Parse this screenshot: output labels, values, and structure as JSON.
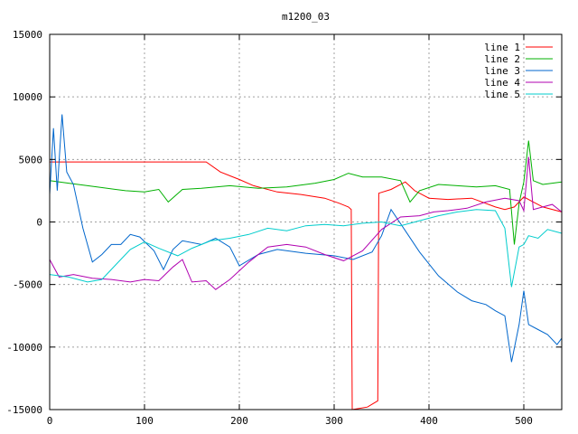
{
  "chart_data": {
    "type": "line",
    "title": "m1200_03",
    "xlabel": "",
    "ylabel": "",
    "xlim": [
      0,
      540
    ],
    "ylim": [
      -15000,
      15000
    ],
    "xticks": [
      0,
      100,
      200,
      300,
      400,
      500
    ],
    "yticks": [
      -15000,
      -10000,
      -5000,
      0,
      5000,
      10000,
      15000
    ],
    "grid": true,
    "legend_position": "top-right",
    "series": [
      {
        "name": "line 1",
        "color": "#ff0000",
        "points": [
          [
            0,
            4800
          ],
          [
            165,
            4800
          ],
          [
            180,
            4000
          ],
          [
            200,
            3400
          ],
          [
            215,
            2900
          ],
          [
            240,
            2400
          ],
          [
            265,
            2200
          ],
          [
            290,
            1900
          ],
          [
            305,
            1500
          ],
          [
            315,
            1200
          ],
          [
            318,
            1000
          ],
          [
            319,
            -15000
          ],
          [
            335,
            -14800
          ],
          [
            346,
            -14300
          ],
          [
            347,
            2300
          ],
          [
            360,
            2600
          ],
          [
            375,
            3200
          ],
          [
            385,
            2500
          ],
          [
            400,
            1900
          ],
          [
            420,
            1800
          ],
          [
            445,
            1900
          ],
          [
            470,
            1200
          ],
          [
            480,
            1000
          ],
          [
            490,
            1200
          ],
          [
            500,
            2000
          ],
          [
            510,
            1600
          ],
          [
            520,
            1200
          ],
          [
            540,
            800
          ]
        ]
      },
      {
        "name": "line 2",
        "color": "#00b000",
        "points": [
          [
            0,
            3300
          ],
          [
            20,
            3100
          ],
          [
            50,
            2800
          ],
          [
            80,
            2500
          ],
          [
            100,
            2400
          ],
          [
            115,
            2600
          ],
          [
            125,
            1600
          ],
          [
            140,
            2600
          ],
          [
            160,
            2700
          ],
          [
            190,
            2900
          ],
          [
            220,
            2700
          ],
          [
            250,
            2800
          ],
          [
            280,
            3100
          ],
          [
            300,
            3400
          ],
          [
            315,
            3900
          ],
          [
            330,
            3600
          ],
          [
            350,
            3600
          ],
          [
            370,
            3300
          ],
          [
            380,
            1600
          ],
          [
            390,
            2500
          ],
          [
            410,
            3000
          ],
          [
            430,
            2900
          ],
          [
            450,
            2800
          ],
          [
            470,
            2900
          ],
          [
            485,
            2600
          ],
          [
            490,
            -1800
          ],
          [
            495,
            1500
          ],
          [
            500,
            3200
          ],
          [
            505,
            6500
          ],
          [
            510,
            3300
          ],
          [
            520,
            3000
          ],
          [
            540,
            3200
          ]
        ]
      },
      {
        "name": "line 3",
        "color": "#0066cc",
        "points": [
          [
            0,
            2200
          ],
          [
            4,
            7500
          ],
          [
            8,
            2500
          ],
          [
            13,
            8600
          ],
          [
            18,
            4000
          ],
          [
            25,
            3000
          ],
          [
            35,
            -500
          ],
          [
            45,
            -3200
          ],
          [
            55,
            -2600
          ],
          [
            65,
            -1800
          ],
          [
            75,
            -1800
          ],
          [
            85,
            -1000
          ],
          [
            95,
            -1200
          ],
          [
            110,
            -2300
          ],
          [
            120,
            -3800
          ],
          [
            130,
            -2200
          ],
          [
            140,
            -1500
          ],
          [
            160,
            -1800
          ],
          [
            175,
            -1300
          ],
          [
            190,
            -2000
          ],
          [
            200,
            -3500
          ],
          [
            220,
            -2600
          ],
          [
            240,
            -2200
          ],
          [
            270,
            -2500
          ],
          [
            300,
            -2700
          ],
          [
            320,
            -3000
          ],
          [
            340,
            -2400
          ],
          [
            350,
            -1100
          ],
          [
            360,
            1000
          ],
          [
            375,
            -700
          ],
          [
            390,
            -2400
          ],
          [
            410,
            -4300
          ],
          [
            430,
            -5600
          ],
          [
            445,
            -6300
          ],
          [
            460,
            -6600
          ],
          [
            470,
            -7100
          ],
          [
            480,
            -7500
          ],
          [
            487,
            -11200
          ],
          [
            495,
            -8200
          ],
          [
            500,
            -5500
          ],
          [
            505,
            -8200
          ],
          [
            515,
            -8600
          ],
          [
            525,
            -9000
          ],
          [
            535,
            -9800
          ],
          [
            540,
            -9300
          ]
        ]
      },
      {
        "name": "line 4",
        "color": "#b000b0",
        "points": [
          [
            0,
            -3000
          ],
          [
            10,
            -4400
          ],
          [
            25,
            -4200
          ],
          [
            45,
            -4500
          ],
          [
            65,
            -4600
          ],
          [
            85,
            -4800
          ],
          [
            100,
            -4600
          ],
          [
            115,
            -4700
          ],
          [
            130,
            -3600
          ],
          [
            140,
            -3000
          ],
          [
            150,
            -4800
          ],
          [
            165,
            -4700
          ],
          [
            175,
            -5400
          ],
          [
            190,
            -4600
          ],
          [
            210,
            -3200
          ],
          [
            230,
            -2000
          ],
          [
            250,
            -1800
          ],
          [
            270,
            -2000
          ],
          [
            290,
            -2600
          ],
          [
            310,
            -3100
          ],
          [
            330,
            -2300
          ],
          [
            350,
            -600
          ],
          [
            370,
            400
          ],
          [
            390,
            500
          ],
          [
            405,
            800
          ],
          [
            420,
            900
          ],
          [
            440,
            1100
          ],
          [
            460,
            1600
          ],
          [
            480,
            1900
          ],
          [
            495,
            1700
          ],
          [
            500,
            900
          ],
          [
            505,
            5200
          ],
          [
            510,
            1000
          ],
          [
            520,
            1200
          ],
          [
            530,
            1400
          ],
          [
            540,
            800
          ]
        ]
      },
      {
        "name": "line 5",
        "color": "#00cccc",
        "points": [
          [
            0,
            -4200
          ],
          [
            20,
            -4400
          ],
          [
            40,
            -4800
          ],
          [
            55,
            -4600
          ],
          [
            70,
            -3400
          ],
          [
            85,
            -2200
          ],
          [
            100,
            -1600
          ],
          [
            115,
            -2100
          ],
          [
            135,
            -2700
          ],
          [
            150,
            -2100
          ],
          [
            170,
            -1500
          ],
          [
            190,
            -1300
          ],
          [
            210,
            -1000
          ],
          [
            230,
            -500
          ],
          [
            250,
            -700
          ],
          [
            270,
            -300
          ],
          [
            290,
            -200
          ],
          [
            310,
            -300
          ],
          [
            330,
            -100
          ],
          [
            350,
            0
          ],
          [
            370,
            -300
          ],
          [
            390,
            100
          ],
          [
            410,
            500
          ],
          [
            430,
            800
          ],
          [
            450,
            1000
          ],
          [
            470,
            900
          ],
          [
            480,
            -500
          ],
          [
            487,
            -5200
          ],
          [
            495,
            -2000
          ],
          [
            500,
            -1800
          ],
          [
            505,
            -1100
          ],
          [
            515,
            -1300
          ],
          [
            525,
            -600
          ],
          [
            540,
            -900
          ]
        ]
      }
    ]
  }
}
